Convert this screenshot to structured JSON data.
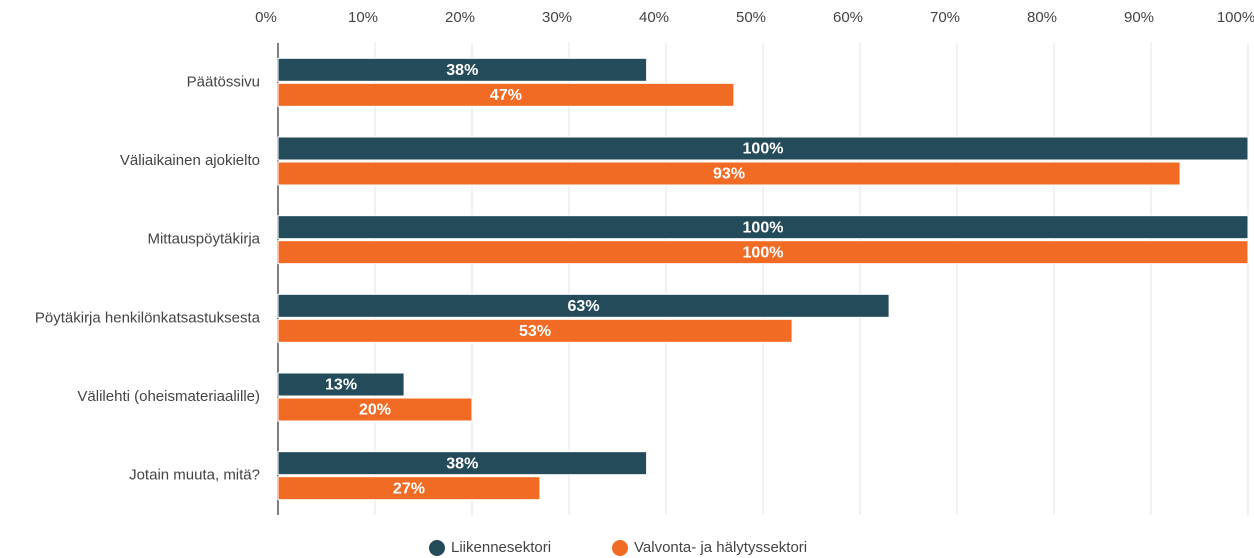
{
  "chart_data": {
    "type": "bar",
    "orientation": "horizontal",
    "categories": [
      "Päätössivu",
      "Väliaikainen ajokielto",
      "Mittauspöytäkirja",
      "Pöytäkirja henkilönkatsastuksesta",
      "Välilehti (oheismateriaalille)",
      "Jotain muuta, mitä?"
    ],
    "series": [
      {
        "name": "Liikennesektori",
        "color": "#244b5a",
        "values": [
          38,
          100,
          100,
          63,
          13,
          38
        ],
        "value_labels": [
          "38%",
          "100%",
          "100%",
          "63%",
          "13%",
          "38%"
        ]
      },
      {
        "name": "Valvonta- ja hälytyssektori",
        "color": "#f26b24",
        "values": [
          47,
          93,
          100,
          53,
          20,
          27
        ],
        "value_labels": [
          "47%",
          "93%",
          "100%",
          "53%",
          "20%",
          "27%"
        ]
      }
    ],
    "xlim": [
      0,
      100
    ],
    "xticks": [
      {
        "value": 0,
        "label": "0%"
      },
      {
        "value": 10,
        "label": "10%"
      },
      {
        "value": 20,
        "label": "20%"
      },
      {
        "value": 30,
        "label": "30%"
      },
      {
        "value": 40,
        "label": "40%"
      },
      {
        "value": 50,
        "label": "50%"
      },
      {
        "value": 60,
        "label": "60%"
      },
      {
        "value": 70,
        "label": "70%"
      },
      {
        "value": 80,
        "label": "80%"
      },
      {
        "value": 90,
        "label": "90%"
      },
      {
        "value": 100,
        "label": "100%"
      }
    ],
    "grid": true,
    "legend": "bottom"
  }
}
